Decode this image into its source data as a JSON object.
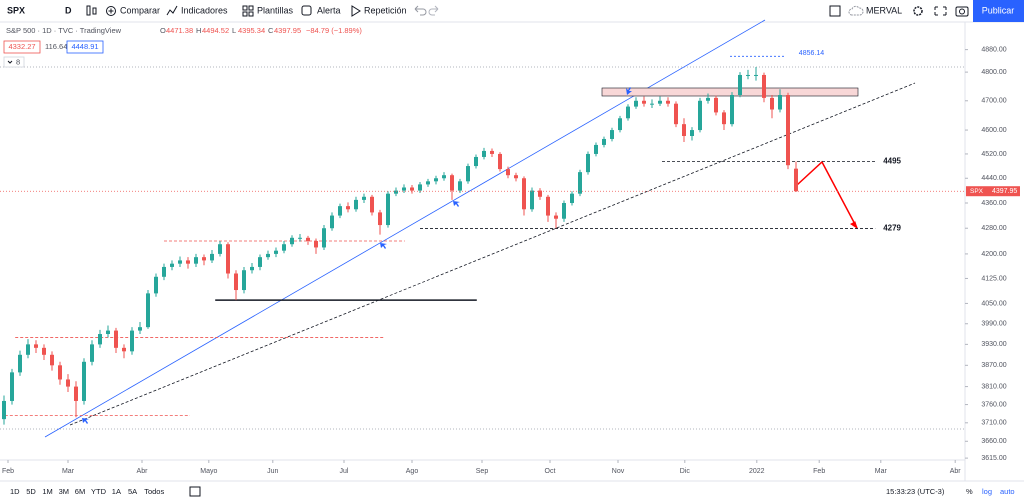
{
  "toolbar": {
    "symbol": "SPX",
    "interval": "D",
    "items": [
      "Comparar",
      "Indicadores",
      "Plantillas",
      "Alerta",
      "Repetición"
    ],
    "index": "MERVAL",
    "publish": "Publicar"
  },
  "header": {
    "title": "S&P 500 · 1D · TVC · TradingView",
    "ohlc_labels": [
      "O",
      "H",
      "L",
      "C"
    ],
    "change": "−84.79 (−1.89%)",
    "bid": "4332.27",
    "spread": "116.64",
    "ask": "4448.91",
    "toggle": "8"
  },
  "bottom": {
    "ranges": [
      "1D",
      "5D",
      "1M",
      "3M",
      "6M",
      "YTD",
      "1A",
      "5A",
      "Todos"
    ],
    "time": "15:33:23 (UTC-3)",
    "percent": "%",
    "log": "log",
    "auto": "auto"
  },
  "chart_data": {
    "type": "candlestick",
    "log_scale": true,
    "up_color": "#26a69a",
    "down_color": "#ef5350",
    "symbol_tag": "SPX",
    "open": [
      3720,
      3770,
      3850,
      3900,
      3930,
      3920,
      3900,
      3870,
      3830,
      3810,
      3770,
      3880,
      3930,
      3960,
      3970,
      3920,
      3910,
      3970,
      3980,
      4080,
      4130,
      4160,
      4170,
      4180,
      4170,
      4190,
      4180,
      4200,
      4230,
      4140,
      4090,
      4150,
      4160,
      4190,
      4200,
      4210,
      4230,
      4250,
      4250,
      4240,
      4220,
      4280,
      4320,
      4350,
      4340,
      4370,
      4380,
      4330,
      4290,
      4390,
      4400,
      4410,
      4400,
      4420,
      4430,
      4440,
      4450,
      4400,
      4430,
      4480,
      4510,
      4530,
      4520,
      4470,
      4450,
      4440,
      4340,
      4400,
      4380,
      4320,
      4310,
      4360,
      4390,
      4460,
      4520,
      4550,
      4570,
      4600,
      4640,
      4680,
      4700,
      4690,
      4690,
      4700,
      4690,
      4620,
      4580,
      4600,
      4700,
      4710,
      4660,
      4620,
      4720,
      4790,
      4790,
      4790,
      4710,
      4670,
      4720,
      4471.38
    ],
    "high": [
      3785,
      3860,
      3912,
      3945,
      3942,
      3930,
      3910,
      3880,
      3845,
      3825,
      3890,
      3942,
      3972,
      3985,
      3978,
      3930,
      3980,
      3995,
      4090,
      4140,
      4170,
      4180,
      4192,
      4190,
      4200,
      4198,
      4212,
      4240,
      4236,
      4150,
      4160,
      4172,
      4198,
      4210,
      4220,
      4240,
      4258,
      4262,
      4256,
      4248,
      4290,
      4330,
      4358,
      4362,
      4380,
      4390,
      4386,
      4338,
      4398,
      4410,
      4420,
      4418,
      4428,
      4438,
      4448,
      4460,
      4455,
      4438,
      4488,
      4518,
      4540,
      4538,
      4526,
      4478,
      4458,
      4446,
      4410,
      4408,
      4386,
      4330,
      4368,
      4398,
      4468,
      4528,
      4558,
      4578,
      4608,
      4648,
      4688,
      4712,
      4715,
      4705,
      4715,
      4712,
      4698,
      4640,
      4610,
      4710,
      4725,
      4718,
      4668,
      4730,
      4800,
      4808,
      4818,
      4798,
      4720,
      4740,
      4728,
      4494.52
    ],
    "low": [
      3705,
      3760,
      3840,
      3890,
      3905,
      3885,
      3855,
      3815,
      3795,
      3725,
      3760,
      3870,
      3920,
      3950,
      3905,
      3890,
      3900,
      3960,
      3975,
      4070,
      4120,
      4150,
      4160,
      4155,
      4160,
      4165,
      4172,
      4192,
      4125,
      4060,
      4080,
      4140,
      4150,
      4182,
      4190,
      4202,
      4222,
      4238,
      4228,
      4200,
      4212,
      4272,
      4312,
      4330,
      4332,
      4360,
      4320,
      4260,
      4282,
      4382,
      4392,
      4390,
      4392,
      4412,
      4420,
      4432,
      4370,
      4392,
      4422,
      4472,
      4502,
      4510,
      4462,
      4440,
      4430,
      4320,
      4332,
      4370,
      4300,
      4280,
      4300,
      4352,
      4382,
      4452,
      4512,
      4542,
      4562,
      4592,
      4632,
      4672,
      4680,
      4675,
      4682,
      4680,
      4610,
      4560,
      4565,
      4592,
      4690,
      4650,
      4600,
      4612,
      4712,
      4775,
      4770,
      4695,
      4640,
      4660,
      4470,
      4395.34
    ],
    "close": [
      3770,
      3850,
      3900,
      3930,
      3920,
      3900,
      3870,
      3830,
      3810,
      3770,
      3880,
      3930,
      3960,
      3970,
      3920,
      3910,
      3970,
      3980,
      4080,
      4130,
      4160,
      4170,
      4180,
      4170,
      4190,
      4180,
      4200,
      4230,
      4140,
      4090,
      4150,
      4160,
      4190,
      4200,
      4210,
      4230,
      4250,
      4250,
      4240,
      4220,
      4280,
      4320,
      4350,
      4340,
      4370,
      4380,
      4330,
      4290,
      4390,
      4400,
      4410,
      4400,
      4420,
      4430,
      4440,
      4450,
      4400,
      4430,
      4480,
      4510,
      4530,
      4520,
      4470,
      4450,
      4440,
      4340,
      4400,
      4380,
      4320,
      4310,
      4360,
      4390,
      4460,
      4520,
      4550,
      4570,
      4600,
      4640,
      4680,
      4700,
      4690,
      4690,
      4700,
      4690,
      4620,
      4580,
      4600,
      4700,
      4710,
      4660,
      4620,
      4720,
      4790,
      4790,
      4790,
      4710,
      4670,
      4720,
      4482.74,
      4397.95
    ],
    "xlim": [
      -0.5,
      120.125
    ],
    "xticks": [
      {
        "value": 0.5,
        "label": "Feb"
      },
      {
        "value": 8,
        "label": "Mar"
      },
      {
        "value": 17.25,
        "label": "Abr"
      },
      {
        "value": 25.6,
        "label": "Mayo"
      },
      {
        "value": 33.6,
        "label": "Jun"
      },
      {
        "value": 42.5,
        "label": "Jul"
      },
      {
        "value": 51,
        "label": "Ago"
      },
      {
        "value": 59.75,
        "label": "Sep"
      },
      {
        "value": 68.25,
        "label": "Oct"
      },
      {
        "value": 76.75,
        "label": "Nov"
      },
      {
        "value": 85.1,
        "label": "Dic"
      },
      {
        "value": 94.1,
        "label": "2022"
      },
      {
        "value": 101.9,
        "label": "Feb"
      },
      {
        "value": 109.6,
        "label": "Mar"
      },
      {
        "value": 118.9,
        "label": "Abr"
      }
    ],
    "ylim": [
      3610,
      4980
    ],
    "yticks": [
      {
        "value": 4880,
        "label": "4880.00"
      },
      {
        "value": 4800,
        "label": "4800.00"
      },
      {
        "value": 4700,
        "label": "4700.00"
      },
      {
        "value": 4600,
        "label": "4600.00"
      },
      {
        "value": 4520,
        "label": "4520.00"
      },
      {
        "value": 4440,
        "label": "4440.00"
      },
      {
        "value": 4360,
        "label": "4360.00"
      },
      {
        "value": 4280,
        "label": "4280.00"
      },
      {
        "value": 4200,
        "label": "4200.00"
      },
      {
        "value": 4125,
        "label": "4125.00"
      },
      {
        "value": 4050,
        "label": "4050.00"
      },
      {
        "value": 3990,
        "label": "3990.00"
      },
      {
        "value": 3930,
        "label": "3930.00"
      },
      {
        "value": 3870,
        "label": "3870.00"
      },
      {
        "value": 3810,
        "label": "3810.00"
      },
      {
        "value": 3760,
        "label": "3760.00"
      },
      {
        "value": 3710,
        "label": "3710.00"
      },
      {
        "value": 3660,
        "label": "3660.00"
      },
      {
        "value": 3615,
        "label": "3615.00"
      }
    ],
    "levels": [
      {
        "value": 4495,
        "color": "#131722",
        "from": 82.25,
        "to": 108.9
      },
      {
        "value": 4279,
        "color": "#131722",
        "from": 52,
        "to": 108.9
      }
    ],
    "guides": [
      {
        "value": 4240,
        "color": "#ef5350",
        "from": 20,
        "to": 50.1
      },
      {
        "value": 3950,
        "color": "#ef5350",
        "from": 1.4,
        "to": 47.6
      },
      {
        "value": 3730,
        "color": "#ef5350",
        "from": 0.1,
        "to": 23.25
      },
      {
        "value": 4060,
        "color": "#131722",
        "from": 26.4,
        "to": 59.1
      }
    ],
    "measure": {
      "value": 4856.14,
      "from": 90.75,
      "to": 97.6
    }
  }
}
